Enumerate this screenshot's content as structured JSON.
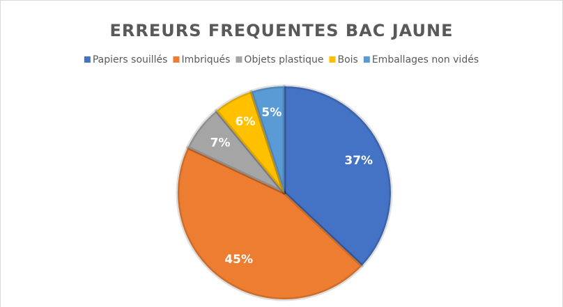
{
  "chart_data": {
    "type": "pie",
    "title": "ERREURS FREQUENTES BAC JAUNE",
    "categories": [
      "Papiers souillés",
      "Imbriqués",
      "Objets plastique",
      "Bois",
      "Emballages non vidés"
    ],
    "values": [
      37,
      45,
      7,
      6,
      5
    ],
    "value_labels": [
      "37%",
      "45%",
      "7%",
      "6%",
      "5%"
    ],
    "colors": [
      "#4472c4",
      "#ed7d31",
      "#a5a5a5",
      "#ffc000",
      "#5b9bd5"
    ],
    "legend": "top"
  }
}
